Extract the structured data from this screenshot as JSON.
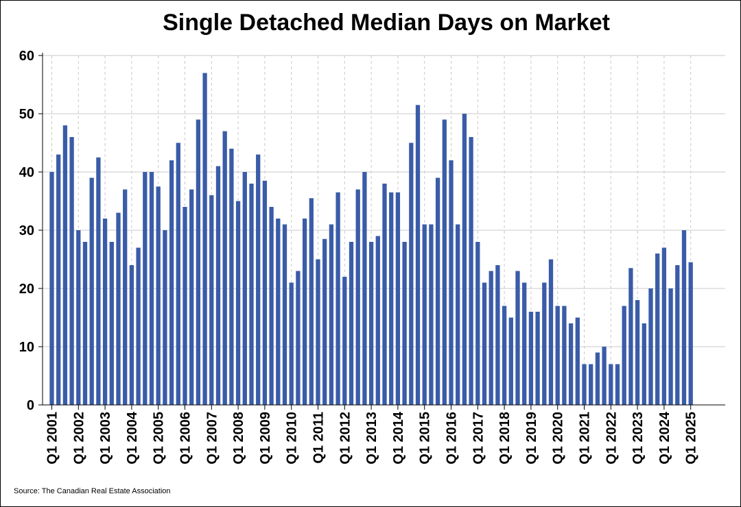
{
  "chart_data": {
    "type": "bar",
    "title": "Single Detached Median Days on Market",
    "source": "Source: The Canadian Real Estate Association",
    "bar_color": "#3a5ca8",
    "ylim": [
      0,
      60
    ],
    "yticks": [
      0,
      10,
      20,
      30,
      40,
      50,
      60
    ],
    "ygrid": true,
    "xgrid_dashed": true,
    "xtick_labels": [
      "Q1 2001",
      "Q1 2002",
      "Q1 2003",
      "Q1 2004",
      "Q1 2005",
      "Q1 2006",
      "Q1 2007",
      "Q1 2008",
      "Q1 2009",
      "Q1 2010",
      "Q1 2011",
      "Q1 2012",
      "Q1 2013",
      "Q1 2014",
      "Q1 2015",
      "Q1 2016",
      "Q1 2017",
      "Q1 2018",
      "Q1 2019",
      "Q1 2020",
      "Q1 2021",
      "Q1 2022",
      "Q1 2023",
      "Q1 2024",
      "Q1 2025"
    ],
    "categories": [
      "Q1 2001",
      "Q2 2001",
      "Q3 2001",
      "Q4 2001",
      "Q1 2002",
      "Q2 2002",
      "Q3 2002",
      "Q4 2002",
      "Q1 2003",
      "Q2 2003",
      "Q3 2003",
      "Q4 2003",
      "Q1 2004",
      "Q2 2004",
      "Q3 2004",
      "Q4 2004",
      "Q1 2005",
      "Q2 2005",
      "Q3 2005",
      "Q4 2005",
      "Q1 2006",
      "Q2 2006",
      "Q3 2006",
      "Q4 2006",
      "Q1 2007",
      "Q2 2007",
      "Q3 2007",
      "Q4 2007",
      "Q1 2008",
      "Q2 2008",
      "Q3 2008",
      "Q4 2008",
      "Q1 2009",
      "Q2 2009",
      "Q3 2009",
      "Q4 2009",
      "Q1 2010",
      "Q2 2010",
      "Q3 2010",
      "Q4 2010",
      "Q1 2011",
      "Q2 2011",
      "Q3 2011",
      "Q4 2011",
      "Q1 2012",
      "Q2 2012",
      "Q3 2012",
      "Q4 2012",
      "Q1 2013",
      "Q2 2013",
      "Q3 2013",
      "Q4 2013",
      "Q1 2014",
      "Q2 2014",
      "Q3 2014",
      "Q4 2014",
      "Q1 2015",
      "Q2 2015",
      "Q3 2015",
      "Q4 2015",
      "Q1 2016",
      "Q2 2016",
      "Q3 2016",
      "Q4 2016",
      "Q1 2017",
      "Q2 2017",
      "Q3 2017",
      "Q4 2017",
      "Q1 2018",
      "Q2 2018",
      "Q3 2018",
      "Q4 2018",
      "Q1 2019",
      "Q2 2019",
      "Q3 2019",
      "Q4 2019",
      "Q1 2020",
      "Q2 2020",
      "Q3 2020",
      "Q4 2020",
      "Q1 2021",
      "Q2 2021",
      "Q3 2021",
      "Q4 2021",
      "Q1 2022",
      "Q2 2022",
      "Q3 2022",
      "Q4 2022",
      "Q1 2023",
      "Q2 2023",
      "Q3 2023",
      "Q4 2023",
      "Q1 2024",
      "Q2 2024",
      "Q3 2024",
      "Q4 2024",
      "Q1 2025"
    ],
    "values": [
      40,
      43,
      48,
      46,
      30,
      28,
      39,
      42.5,
      32,
      28,
      33,
      37,
      24,
      27,
      40,
      40,
      37.5,
      30,
      42,
      45,
      34,
      37,
      49,
      57,
      36,
      41,
      47,
      44,
      35,
      40,
      38,
      43,
      38.5,
      34,
      32,
      31,
      21,
      23,
      32,
      35.5,
      25,
      28.5,
      31,
      36.5,
      22,
      28,
      37,
      40,
      28,
      29,
      38,
      36.5,
      36.5,
      28,
      45,
      51.5,
      31,
      31,
      39,
      49,
      42,
      31,
      50,
      46,
      28,
      21,
      23,
      24,
      17,
      15,
      23,
      21,
      16,
      16,
      21,
      25,
      17,
      17,
      14,
      15,
      7,
      7,
      9,
      10,
      7,
      7,
      17,
      23.5,
      18,
      14,
      20,
      26,
      27,
      20,
      24,
      30,
      24.5
    ]
  }
}
